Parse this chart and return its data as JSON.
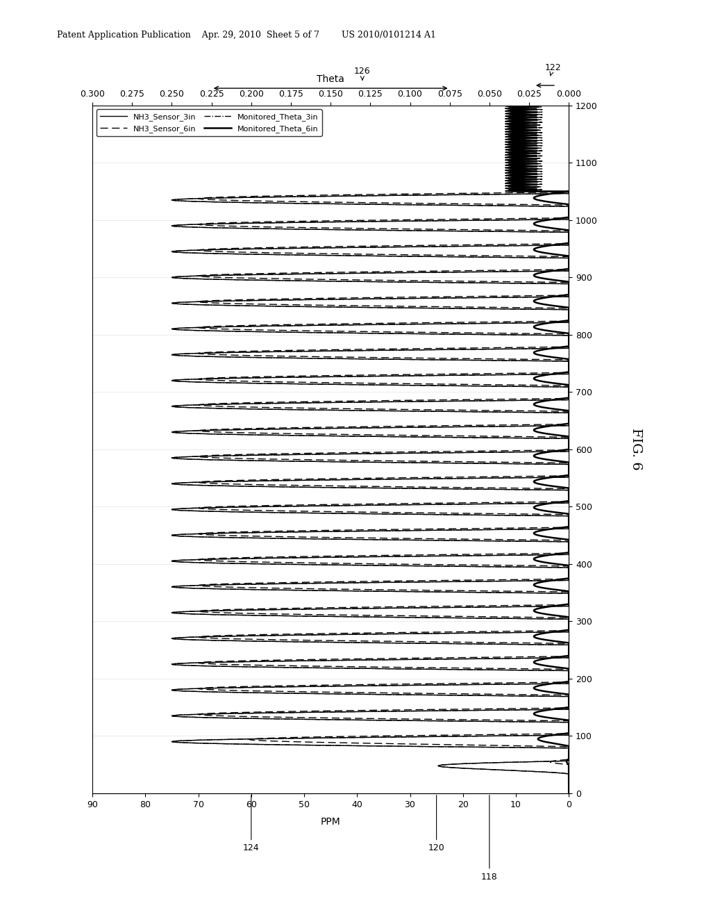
{
  "header": "Patent Application Publication    Apr. 29, 2010  Sheet 5 of 7        US 2010/0101214 A1",
  "fig_label": "FIG. 6",
  "theta_axis_label": "Theta",
  "ppm_axis_label": "PPM",
  "ppm_ticks": [
    0,
    10,
    20,
    30,
    40,
    50,
    60,
    70,
    80,
    90
  ],
  "theta_ticks": [
    0,
    0.025,
    0.05,
    0.075,
    0.1,
    0.125,
    0.15,
    0.175,
    0.2,
    0.225,
    0.25,
    0.275,
    0.3
  ],
  "time_ticks": [
    0,
    100,
    200,
    300,
    400,
    500,
    600,
    700,
    800,
    900,
    1000,
    1100,
    1200
  ],
  "time_min": 0,
  "time_max": 1200,
  "ppm_min": 0,
  "ppm_max": 90,
  "theta_min": 0,
  "theta_max": 0.3,
  "signal_period": 45,
  "transition_time": 1050,
  "high_freq_period": 9,
  "nh3_3in_max": 75,
  "nh3_6in_max": 70,
  "legend_labels": [
    "NH3_Sensor_3in",
    "NH3_Sensor_6in",
    "Monitored_Theta_3in",
    "Monitored_Theta_6in"
  ],
  "bg_color": "#ffffff"
}
